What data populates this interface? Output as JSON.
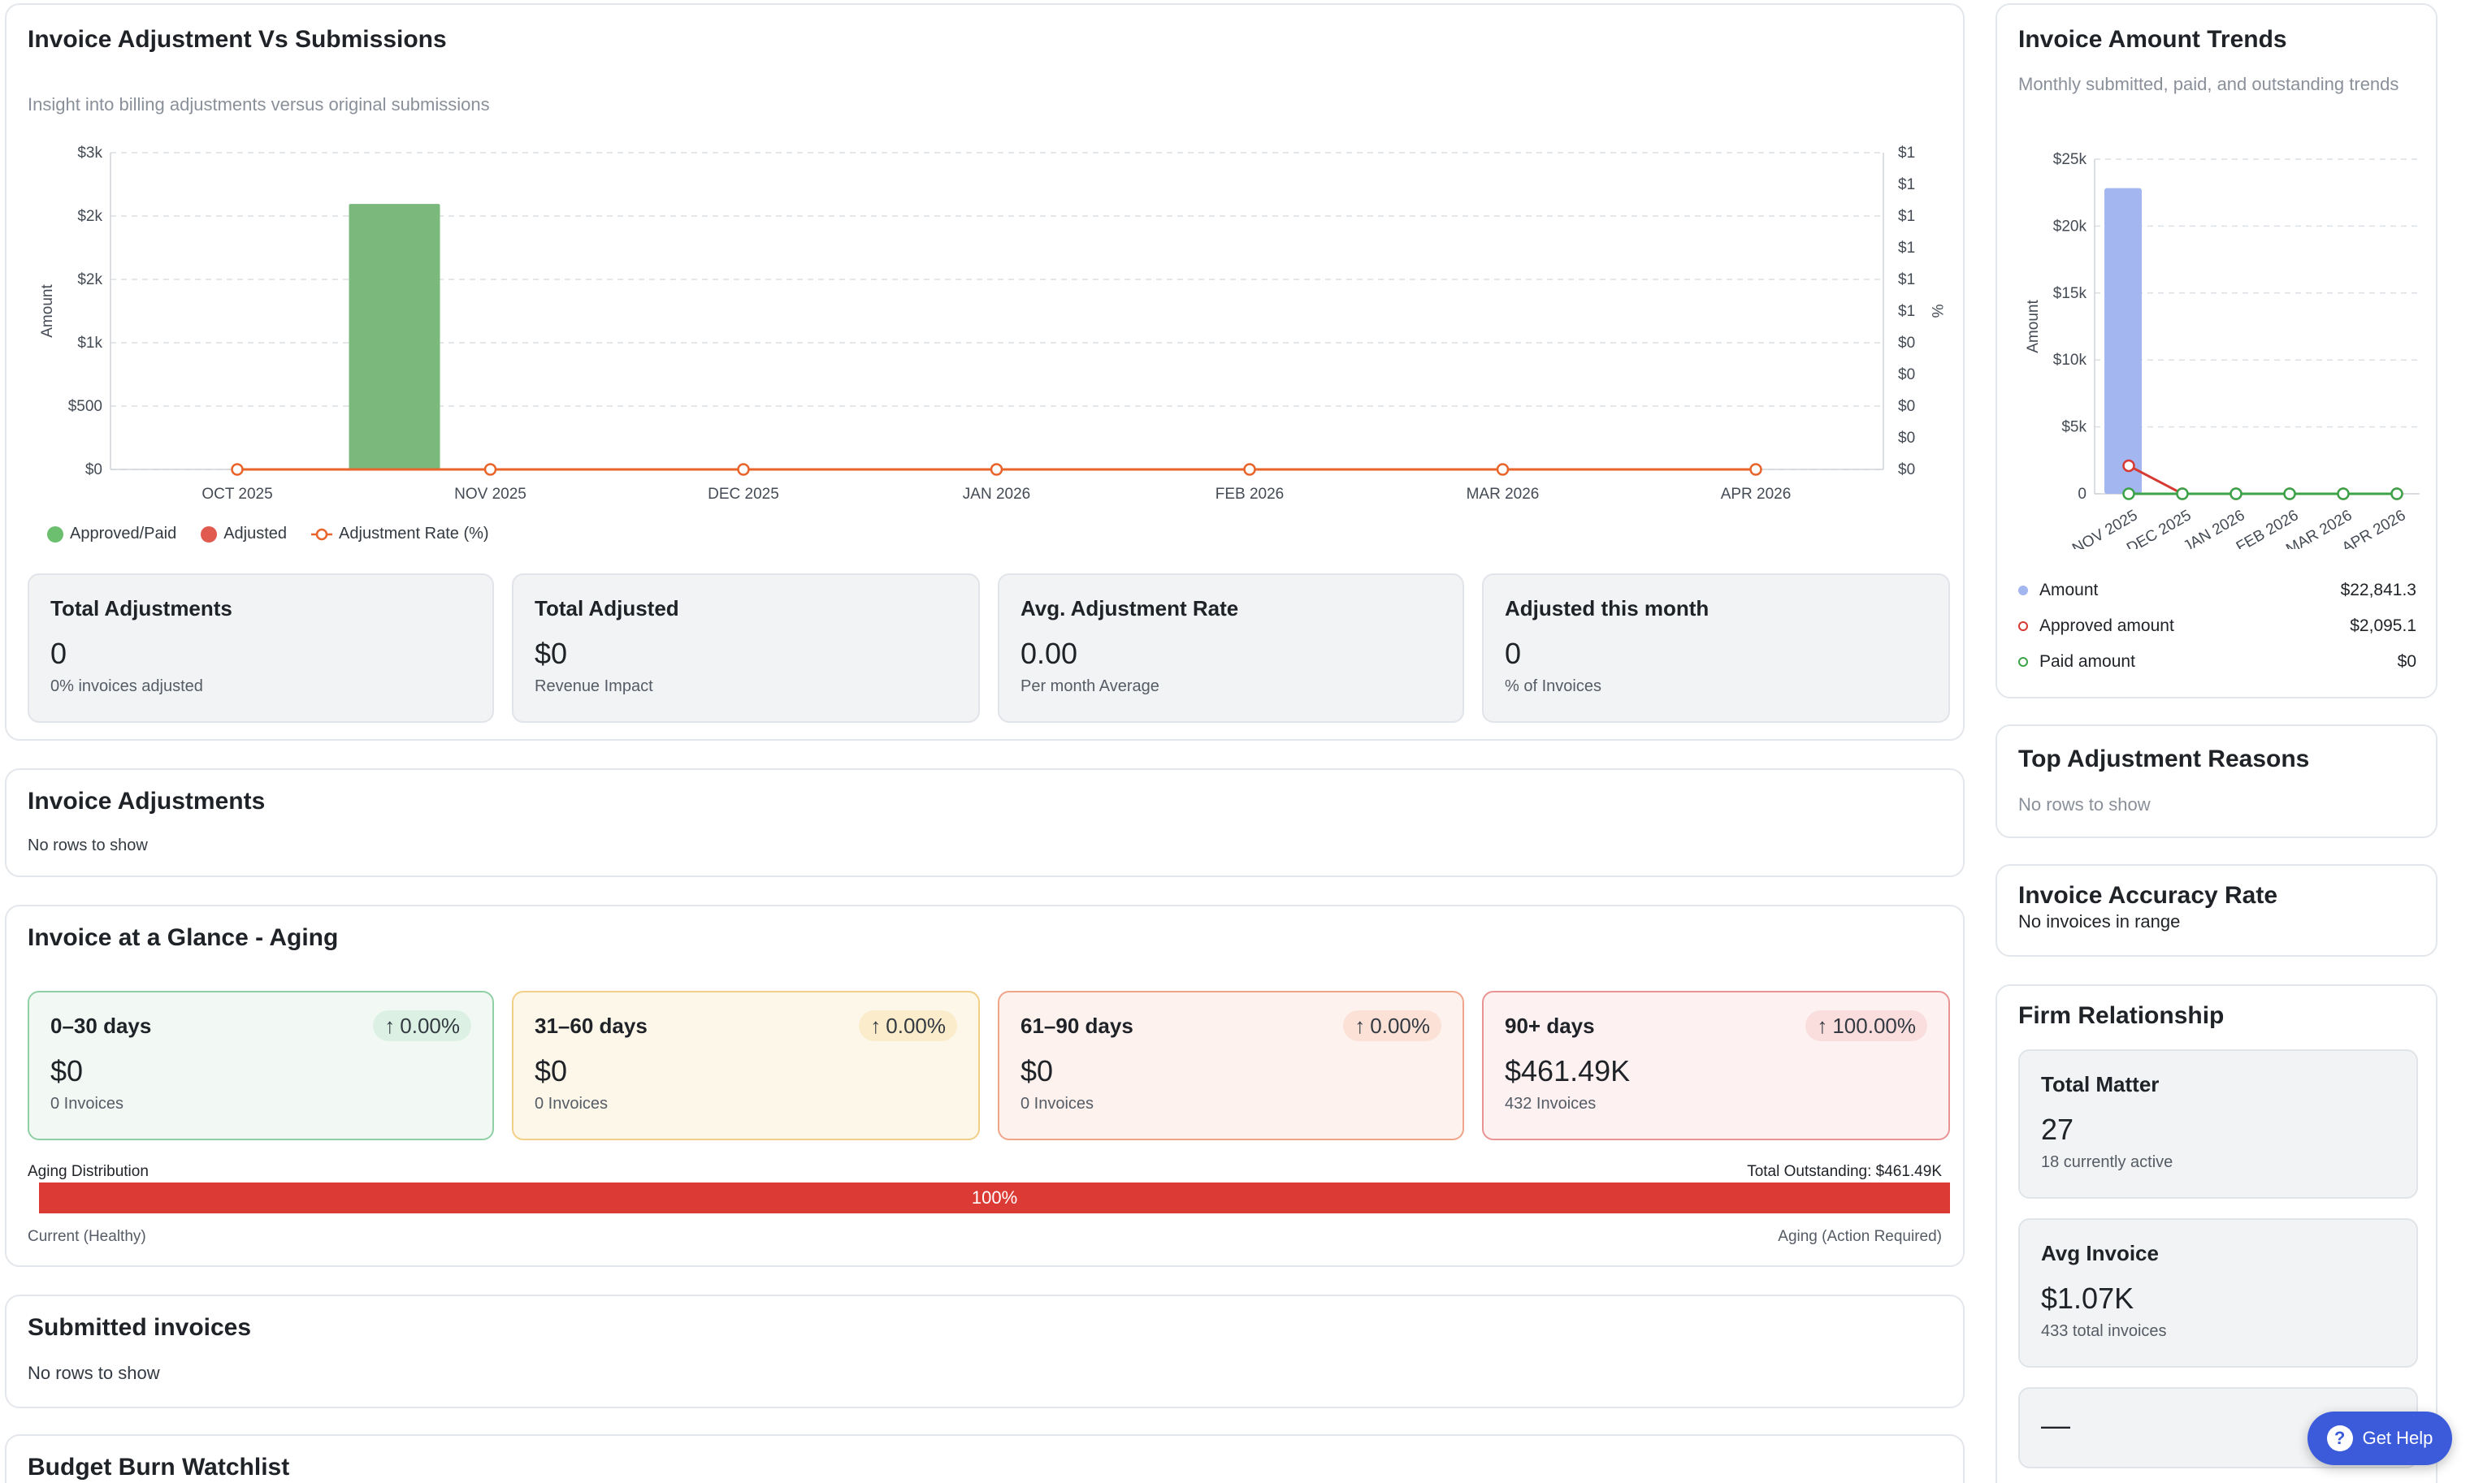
{
  "adjustment_card": {
    "title": "Invoice Adjustment Vs Submissions",
    "subtitle": "Insight into billing adjustments versus original submissions",
    "legend": [
      "Approved/Paid",
      "Adjusted",
      "Adjustment Rate (%)"
    ],
    "stats": [
      {
        "label": "Total Adjustments",
        "value": "0",
        "sub": "0% invoices adjusted"
      },
      {
        "label": "Total Adjusted",
        "value": "$0",
        "sub": "Revenue Impact"
      },
      {
        "label": "Avg. Adjustment Rate",
        "value": "0.00",
        "sub": "Per month Average"
      },
      {
        "label": "Adjusted this month",
        "value": "0",
        "sub": "% of Invoices"
      }
    ]
  },
  "chart_data": [
    {
      "type": "bar",
      "title": "Invoice Adjustment Vs Submissions",
      "ylabel": "Amount",
      "y2label": "%",
      "categories": [
        "OCT 2025",
        "NOV 2025",
        "DEC 2025",
        "JAN 2026",
        "FEB 2026",
        "MAR 2026",
        "APR 2026"
      ],
      "yticks": [
        "$0",
        "$500",
        "$1k",
        "$2k",
        "$2k",
        "$3k"
      ],
      "y2ticks": [
        "$0",
        "$0",
        "$0",
        "$0",
        "$0",
        "$1",
        "$1",
        "$1",
        "$1",
        "$1",
        "$1"
      ],
      "ylim": [
        0,
        2500
      ],
      "series": [
        {
          "name": "Approved/Paid",
          "kind": "bar",
          "color": "#7ab87c",
          "values": [
            0,
            2095,
            0,
            0,
            0,
            0,
            0
          ]
        },
        {
          "name": "Adjusted",
          "kind": "bar",
          "color": "#e05a4f",
          "values": [
            0,
            0,
            0,
            0,
            0,
            0,
            0
          ]
        },
        {
          "name": "Adjustment Rate (%)",
          "kind": "line",
          "color": "#e8642b",
          "values": [
            0,
            0,
            0,
            0,
            0,
            0,
            0
          ]
        }
      ],
      "grid": true,
      "legend_position": "bottom-left"
    },
    {
      "type": "bar",
      "title": "Invoice Amount Trends",
      "ylabel": "Amount",
      "categories": [
        "NOV 2025",
        "DEC 2025",
        "JAN 2026",
        "FEB 2026",
        "MAR 2026",
        "APR 2026"
      ],
      "yticks": [
        "0",
        "$5k",
        "$10k",
        "$15k",
        "$20k",
        "$25k"
      ],
      "ylim": [
        0,
        25000
      ],
      "series": [
        {
          "name": "Amount",
          "kind": "bar",
          "color": "#a3b6f0",
          "values": [
            22841.3,
            0,
            0,
            0,
            0,
            0
          ]
        },
        {
          "name": "Approved amount",
          "kind": "line",
          "color": "#d63a32",
          "values": [
            2095.1,
            0,
            0,
            0,
            0,
            0
          ]
        },
        {
          "name": "Paid amount",
          "kind": "line",
          "color": "#3da34a",
          "values": [
            0,
            0,
            0,
            0,
            0,
            0
          ]
        }
      ],
      "grid": true,
      "legend_position": "bottom"
    }
  ],
  "invoice_adjustments": {
    "title": "Invoice Adjustments",
    "empty": "No rows to show"
  },
  "aging_card": {
    "title": "Invoice at a Glance - Aging",
    "buckets": [
      {
        "label": "0–30 days",
        "change": "0.00%",
        "value": "$0",
        "sub": "0 Invoices"
      },
      {
        "label": "31–60 days",
        "change": "0.00%",
        "value": "$0",
        "sub": "0 Invoices"
      },
      {
        "label": "61–90 days",
        "change": "0.00%",
        "value": "$0",
        "sub": "0 Invoices"
      },
      {
        "label": "90+ days",
        "change": "100.00%",
        "value": "$461.49K",
        "sub": "432 Invoices"
      }
    ],
    "distribution_label": "Aging Distribution",
    "total_outstanding": "Total Outstanding: $461.49K",
    "bar_percent": "100%",
    "bar_fill_fraction": 1.0,
    "left_caption": "Current (Healthy)",
    "right_caption": "Aging (Action Required)"
  },
  "submitted_invoices": {
    "title": "Submitted invoices",
    "empty": "No rows to show"
  },
  "budget_burn": {
    "title": "Budget Burn Watchlist"
  },
  "trends_card": {
    "title": "Invoice Amount Trends",
    "subtitle": "Monthly submitted, paid, and outstanding trends",
    "legend": [
      {
        "label": "Amount",
        "value": "$22,841.3"
      },
      {
        "label": "Approved amount",
        "value": "$2,095.1"
      },
      {
        "label": "Paid amount",
        "value": "$0"
      }
    ]
  },
  "top_reasons": {
    "title": "Top Adjustment Reasons",
    "empty": "No rows to show"
  },
  "accuracy": {
    "title": "Invoice Accuracy Rate",
    "empty": "No invoices in range"
  },
  "firm": {
    "title": "Firm Relationship",
    "stats": [
      {
        "label": "Total Matter",
        "value": "27",
        "sub": "18 currently active"
      },
      {
        "label": "Avg Invoice",
        "value": "$1.07K",
        "sub": "433 total invoices"
      },
      {
        "label": "",
        "value": "—",
        "sub": ""
      }
    ]
  },
  "help": {
    "label": "Get Help"
  },
  "colors": {
    "green_border": "#8fd1a4",
    "green_bg": "#f2f8f4",
    "green_badge": "#dcf1e3",
    "yellow_border": "#f2cf86",
    "yellow_bg": "#fdf7ea",
    "yellow_badge": "#fbeccb",
    "orange_border": "#f0a58a",
    "orange_bg": "#fdf2ee",
    "orange_badge": "#fbe1d6",
    "red_border": "#e89494",
    "red_bg": "#fdf1f1",
    "red_badge": "#fadddd",
    "aging_bar": "#dc3a35"
  }
}
